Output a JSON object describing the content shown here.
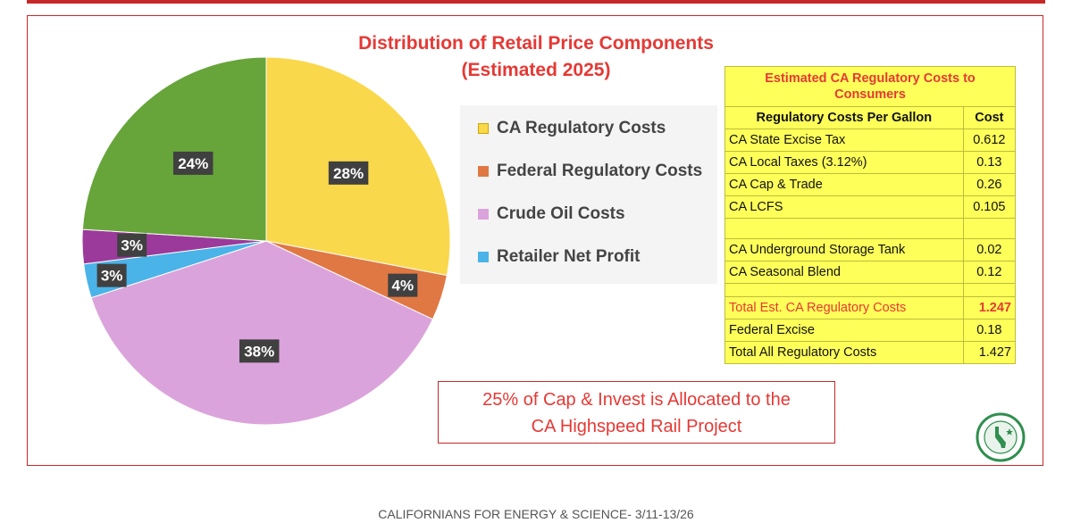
{
  "chart_data": {
    "type": "pie",
    "title": "Distribution of Retail Price Components",
    "subtitle": "(Estimated 2025)",
    "legend_position": "right",
    "slices": [
      {
        "name": "CA Regulatory Costs",
        "value": 28,
        "label": "28%",
        "color": "#f9d84b"
      },
      {
        "name": "Federal Regulatory Costs",
        "value": 4,
        "label": "4%",
        "color": "#e07844"
      },
      {
        "name": "Crude Oil Costs",
        "value": 38,
        "label": "38%",
        "color": "#dba3db"
      },
      {
        "name": "Retailer Net Profit",
        "value": 3,
        "label": "3%",
        "color": "#4ab3e8"
      },
      {
        "name": "",
        "value": 3,
        "label": "3%",
        "color": "#9b3a9b"
      },
      {
        "name": "",
        "value": 24,
        "label": "24%",
        "color": "#67a53b"
      }
    ],
    "legend": [
      {
        "label": "CA Regulatory Costs",
        "color": "#f9d84b",
        "border": "#caa800"
      },
      {
        "label": "Federal Regulatory Costs",
        "color": "#e07844",
        "border": "#e07844"
      },
      {
        "label": "Crude Oil Costs",
        "color": "#dba3db",
        "border": "#dba3db"
      },
      {
        "label": "Retailer Net Profit",
        "color": "#4ab3e8",
        "border": "#4ab3e8"
      }
    ]
  },
  "reg_table": {
    "title": "Estimated CA Regulatory Costs to Consumers",
    "col_item": "Regulatory Costs Per Gallon",
    "col_cost": "Cost",
    "rows": [
      {
        "item": "CA State Excise Tax",
        "cost": "0.612"
      },
      {
        "item": "CA Local Taxes (3.12%)",
        "cost": "0.13"
      },
      {
        "item": "CA Cap & Trade",
        "cost": "0.26"
      },
      {
        "item": "CA LCFS",
        "cost": "0.105"
      },
      {
        "item": "CA Underground Storage Tank",
        "cost": "0.02"
      },
      {
        "item": "CA Seasonal Blend",
        "cost": "0.12"
      }
    ],
    "total_ca": {
      "item": "Total Est. CA Regulatory Costs",
      "cost": "1.247"
    },
    "federal": {
      "item": "Federal Excise",
      "cost": "0.18"
    },
    "total_all": {
      "item": "Total All Regulatory Costs",
      "cost": "1.427"
    }
  },
  "callout": {
    "line1": "25% of Cap & Invest is Allocated to the",
    "line2": "CA Highspeed Rail Project"
  },
  "logo": {
    "text": "CALIFORNIANS FOR ENERGY & SCIENCE",
    "color": "#2f8f4e"
  },
  "footer": "CALIFORNIANS FOR ENERGY & SCIENCE- 3/11-13/26",
  "colors": {
    "accent_red": "#e53935",
    "frame_red": "#c62828",
    "table_yellow": "#ffff5a"
  }
}
